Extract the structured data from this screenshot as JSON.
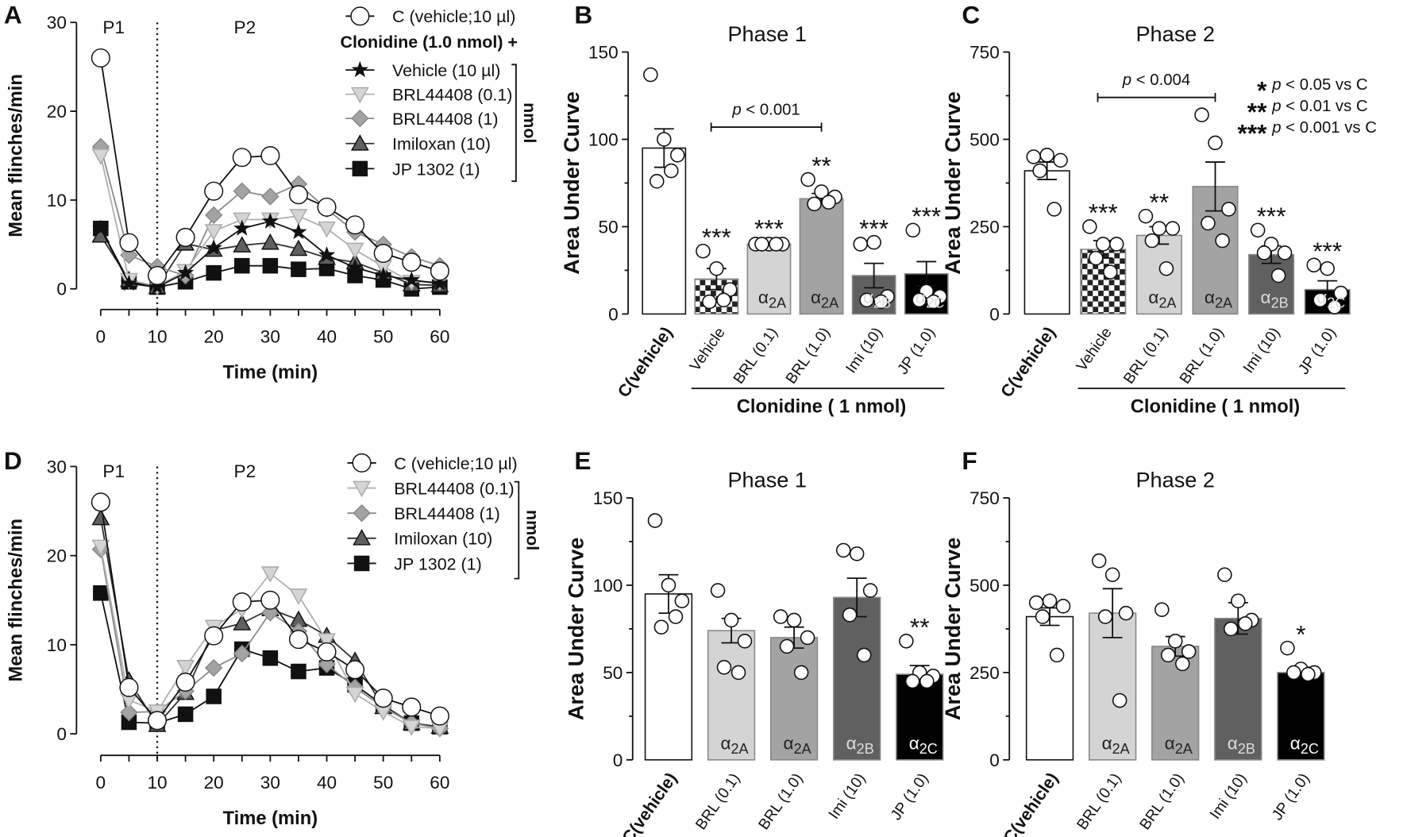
{
  "chart_data": [
    {
      "panel": "A",
      "type": "line",
      "ylabel": "Mean flinches/min",
      "xlabel": "Time (min)",
      "ylim": [
        0,
        30
      ],
      "yticks": [
        0,
        10,
        20,
        30
      ],
      "xlim": [
        0,
        60
      ],
      "xticks": [
        0,
        10,
        20,
        30,
        40,
        50,
        60
      ],
      "phase_labels": [
        "P1",
        "P2"
      ],
      "phase_divider_x": 10,
      "legend_header": "Clonidine (1.0 nmol) +",
      "legend_unit": "nmol",
      "x": [
        0,
        5,
        10,
        15,
        20,
        25,
        30,
        35,
        40,
        45,
        50,
        55,
        60
      ],
      "series": [
        {
          "name": "C (vehicle;10 µl)",
          "marker": "circle",
          "fill": "#ffffff",
          "line": "#111111",
          "values": [
            26,
            5.2,
            1.5,
            5.8,
            11,
            14.8,
            15,
            10.6,
            9.2,
            7.2,
            4,
            3,
            2
          ]
        },
        {
          "name": "Vehicle (10 µl)",
          "marker": "star",
          "fill": "#111111",
          "line": "#111111",
          "values": [
            6.8,
            0.6,
            0.2,
            1.8,
            4.6,
            6.8,
            7.6,
            6.4,
            3.8,
            2.4,
            1.5,
            1,
            0.6
          ]
        },
        {
          "name": "BRL44408 (0.1)",
          "marker": "tri-down",
          "fill": "#d4d4d4",
          "line": "#b0b0b0",
          "values": [
            15,
            1,
            0.3,
            2,
            6.5,
            7.8,
            7.8,
            8.2,
            6.8,
            4.4,
            2.5,
            0.8,
            0.8
          ]
        },
        {
          "name": "BRL44408 (1)",
          "marker": "diamond",
          "fill": "#a3a3a3",
          "line": "#8c8c8c",
          "values": [
            16,
            3.8,
            2.5,
            1.5,
            8.3,
            11,
            10.4,
            11.8,
            9,
            6.4,
            5,
            3.6,
            2.6
          ]
        },
        {
          "name": "Imiloxan (10)",
          "marker": "tri-up",
          "fill": "#606060",
          "line": "#333333",
          "values": [
            6,
            1,
            0.2,
            5.1,
            4.4,
            4.9,
            5.2,
            4.5,
            3.5,
            3,
            1.8,
            0.5,
            0.4
          ]
        },
        {
          "name": "JP 1302 (1)",
          "marker": "square",
          "fill": "#111111",
          "line": "#111111",
          "values": [
            6.8,
            0.8,
            0.2,
            0.8,
            1.8,
            2.6,
            2.6,
            2.2,
            2.3,
            1.5,
            1,
            0,
            0.2
          ]
        }
      ]
    },
    {
      "panel": "B",
      "type": "bar",
      "title": "Phase 1",
      "ylabel": "Area Under Curve",
      "ylim": [
        0,
        150
      ],
      "yticks": [
        0,
        50,
        100,
        150
      ],
      "categories": [
        "C(vehicle)",
        "Vehicle",
        "BRL (0.1)",
        "BRL (1.0)",
        "Imi (10)",
        "JP (1.0)"
      ],
      "values": [
        95,
        20,
        40,
        66,
        22,
        23
      ],
      "sem": [
        11,
        6,
        1,
        3,
        7,
        7
      ],
      "points": [
        [
          137,
          100,
          91,
          76,
          82
        ],
        [
          36,
          26,
          14,
          7,
          8
        ],
        [
          40,
          40,
          40,
          40,
          40
        ],
        [
          77,
          70,
          67,
          63,
          64
        ],
        [
          40,
          41,
          10,
          8,
          7
        ],
        [
          48,
          13,
          10,
          8,
          7
        ]
      ],
      "significance": [
        "",
        "***",
        "***",
        "**",
        "***",
        "***"
      ],
      "subtype": [
        "",
        "",
        "2A",
        "2A",
        "2B",
        "2C"
      ],
      "alpha": "α",
      "group_label": "Clonidine ( 1 nmol)",
      "comparison": {
        "text_p": "p",
        "text_rest": " < 0.001",
        "from": 1,
        "to": 3,
        "y": 107
      }
    },
    {
      "panel": "C",
      "type": "bar",
      "title": "Phase 2",
      "ylabel": "Area Under Curve",
      "ylim": [
        0,
        750
      ],
      "yticks": [
        0,
        250,
        500,
        750
      ],
      "categories": [
        "C(vehicle)",
        "Vehicle",
        "BRL (0.1)",
        "BRL (1.0)",
        "Imi (10)",
        "JP (1.0)"
      ],
      "values": [
        410,
        185,
        225,
        365,
        170,
        70
      ],
      "sem": [
        25,
        25,
        25,
        70,
        25,
        25
      ],
      "points": [
        [
          450,
          455,
          440,
          410,
          300
        ],
        [
          250,
          200,
          200,
          160,
          120
        ],
        [
          280,
          245,
          245,
          210,
          130
        ],
        [
          570,
          490,
          300,
          260,
          210
        ],
        [
          240,
          200,
          175,
          175,
          110
        ],
        [
          140,
          130,
          60,
          40,
          20
        ]
      ],
      "significance": [
        "",
        "***",
        "**",
        "",
        "***",
        "***"
      ],
      "subtype": [
        "",
        "",
        "2A",
        "2A",
        "2B",
        "2C"
      ],
      "alpha": "α",
      "group_label": "Clonidine ( 1 nmol)",
      "comparison": {
        "text_p": "p",
        "text_rest": " < 0.004",
        "from": 1,
        "to": 3,
        "y": 620
      },
      "legend": [
        {
          "stars": "*",
          "p": "p",
          "text": " < 0.05 vs C"
        },
        {
          "stars": "**",
          "p": "p",
          "text": " < 0.01 vs C"
        },
        {
          "stars": "***",
          "p": "p",
          "text": " < 0.001 vs C"
        }
      ]
    },
    {
      "panel": "D",
      "type": "line",
      "ylabel": "Mean flinches/min",
      "xlabel": "Time (min)",
      "ylim": [
        0,
        30
      ],
      "yticks": [
        0,
        10,
        20,
        30
      ],
      "xlim": [
        0,
        60
      ],
      "xticks": [
        0,
        10,
        20,
        30,
        40,
        50,
        60
      ],
      "phase_labels": [
        "P1",
        "P2"
      ],
      "phase_divider_x": 10,
      "legend_unit": "nmol",
      "x": [
        0,
        5,
        10,
        15,
        20,
        25,
        30,
        35,
        40,
        45,
        50,
        55,
        60
      ],
      "series": [
        {
          "name": "C (vehicle;10 µl)",
          "marker": "circle",
          "fill": "#ffffff",
          "line": "#111111",
          "values": [
            26,
            5.2,
            1.5,
            5.8,
            11,
            14.8,
            15,
            10.6,
            9.2,
            7.2,
            4,
            3,
            2
          ]
        },
        {
          "name": "BRL44408 (0.1)",
          "marker": "tri-down",
          "fill": "#d4d4d4",
          "line": "#b0b0b0",
          "values": [
            21,
            3.8,
            2.5,
            7.5,
            12,
            14,
            18,
            15.5,
            10.5,
            4.5,
            2.5,
            0.8,
            0.6
          ]
        },
        {
          "name": "BRL44408 (1)",
          "marker": "diamond",
          "fill": "#a3a3a3",
          "line": "#8c8c8c",
          "values": [
            20.7,
            2.4,
            2.5,
            4.8,
            7.4,
            9,
            13.6,
            11.5,
            7.8,
            5.2,
            3,
            1.2,
            0.6
          ]
        },
        {
          "name": "Imiloxan (10)",
          "marker": "tri-up",
          "fill": "#606060",
          "line": "#333333",
          "values": [
            24.2,
            6,
            1,
            4.6,
            11.6,
            12.4,
            14,
            12.8,
            11,
            8.2,
            3,
            1.2,
            0.8
          ]
        },
        {
          "name": "JP 1302 (1)",
          "marker": "square",
          "fill": "#111111",
          "line": "#111111",
          "values": [
            15.8,
            1.3,
            1.2,
            2.2,
            4.2,
            9.5,
            8.5,
            7,
            7.4,
            5.5,
            3.2,
            1.2,
            0.8
          ]
        }
      ]
    },
    {
      "panel": "E",
      "type": "bar",
      "title": "Phase 1",
      "ylabel": "Area Under Curve",
      "ylim": [
        0,
        150
      ],
      "yticks": [
        0,
        50,
        100,
        150
      ],
      "categories": [
        "C(vehicle)",
        "BRL (0.1)",
        "BRL (1.0)",
        "Imi (10)",
        "JP (1.0)"
      ],
      "values": [
        95,
        74,
        70,
        93,
        49
      ],
      "sem": [
        11,
        7,
        6,
        11,
        5
      ],
      "points": [
        [
          137,
          100,
          91,
          76,
          82
        ],
        [
          97,
          80,
          68,
          53,
          50
        ],
        [
          82,
          80,
          70,
          65,
          50
        ],
        [
          120,
          118,
          97,
          83,
          60
        ],
        [
          68,
          50,
          48,
          45,
          45
        ]
      ],
      "significance": [
        "",
        "",
        "",
        "",
        "**"
      ],
      "subtype": [
        "",
        "2A",
        "2A",
        "2B",
        "2C"
      ],
      "alpha": "α"
    },
    {
      "panel": "F",
      "type": "bar",
      "title": "Phase 2",
      "ylabel": "Area Under Curve",
      "ylim": [
        0,
        750
      ],
      "yticks": [
        0,
        250,
        500,
        750
      ],
      "categories": [
        "C(vehicle)",
        "BRL (0.1)",
        "BRL (1.0)",
        "Imi (10)",
        "JP (1.0)"
      ],
      "values": [
        410,
        420,
        325,
        405,
        250
      ],
      "sem": [
        25,
        70,
        28,
        45,
        15
      ],
      "points": [
        [
          450,
          455,
          440,
          410,
          300
        ],
        [
          570,
          530,
          420,
          410,
          170
        ],
        [
          430,
          340,
          310,
          300,
          275
        ],
        [
          530,
          455,
          400,
          375,
          390
        ],
        [
          320,
          260,
          250,
          250,
          245
        ]
      ],
      "significance": [
        "",
        "",
        "",
        "",
        "*"
      ],
      "subtype": [
        "",
        "2A",
        "2A",
        "2B",
        "2C"
      ],
      "alpha": "α"
    }
  ],
  "colors": {
    "c_vehicle": "#ffffff",
    "brl_01": "#d4d4d4",
    "brl_1": "#a3a3a3",
    "imiloxan": "#606060",
    "jp1302": "#000000",
    "axis": "#111111"
  }
}
